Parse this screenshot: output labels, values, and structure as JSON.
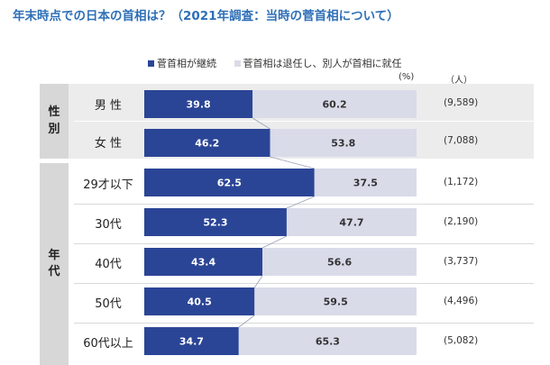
{
  "chart_data": {
    "type": "bar",
    "stacked": true,
    "orientation": "horizontal",
    "title": "年末時点での日本の首相は？（2021年調査：当時の菅首相について）",
    "unit_percent": "(%)",
    "unit_count": "（人）",
    "series": [
      {
        "name": "菅首相が継続",
        "color": "#2b4596",
        "values": [
          39.8,
          46.2,
          62.5,
          52.3,
          43.4,
          40.5,
          34.7
        ]
      },
      {
        "name": "菅首相は退任し、別人が首相に就任",
        "color": "#d9dbe9",
        "values": [
          60.2,
          53.8,
          37.5,
          47.7,
          56.6,
          59.5,
          65.3
        ]
      }
    ],
    "groups": [
      {
        "label": "性\n別",
        "rows": [
          0,
          1
        ]
      },
      {
        "label": "年\n代",
        "rows": [
          2,
          3,
          4,
          5,
          6
        ]
      }
    ],
    "categories": [
      "男 性",
      "女 性",
      "29才以下",
      "30代",
      "40代",
      "50代",
      "60代以上"
    ],
    "counts": [
      "(9,589)",
      "(7,088)",
      "(1,172)",
      "(2,190)",
      "(3,737)",
      "(4,496)",
      "(5,082)"
    ],
    "xlim": [
      0,
      100
    ]
  }
}
